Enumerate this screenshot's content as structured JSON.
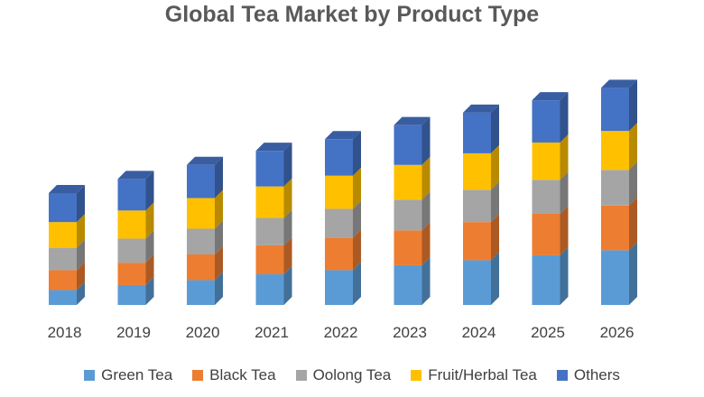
{
  "chart_data": {
    "type": "bar",
    "stacked": true,
    "style": "3d-column",
    "title": "Global Tea Market by Product Type",
    "xlabel": "",
    "ylabel": "",
    "categories": [
      "2018",
      "2019",
      "2020",
      "2021",
      "2022",
      "2023",
      "2024",
      "2025",
      "2026"
    ],
    "series": [
      {
        "name": "Green Tea",
        "color": "#5B9BD5",
        "values": [
          18,
          24,
          30,
          37,
          42,
          48,
          54,
          60,
          66
        ]
      },
      {
        "name": "Black Tea",
        "color": "#ED7D31",
        "values": [
          24,
          27,
          31,
          35,
          39,
          42,
          46,
          50,
          54
        ]
      },
      {
        "name": "Oolong Tea",
        "color": "#A5A5A5",
        "values": [
          27,
          29,
          31,
          33,
          35,
          37,
          39,
          41,
          43
        ]
      },
      {
        "name": "Fruit/Herbal Tea",
        "color": "#FFC000",
        "values": [
          31,
          34,
          37,
          38,
          40,
          42,
          44,
          45,
          47
        ]
      },
      {
        "name": "Others",
        "color": "#4472C4",
        "values": [
          35,
          38,
          40,
          43,
          44,
          48,
          49,
          51,
          52
        ]
      }
    ],
    "ylim": [
      0,
      270
    ],
    "grid": false,
    "legend_position": "bottom"
  }
}
